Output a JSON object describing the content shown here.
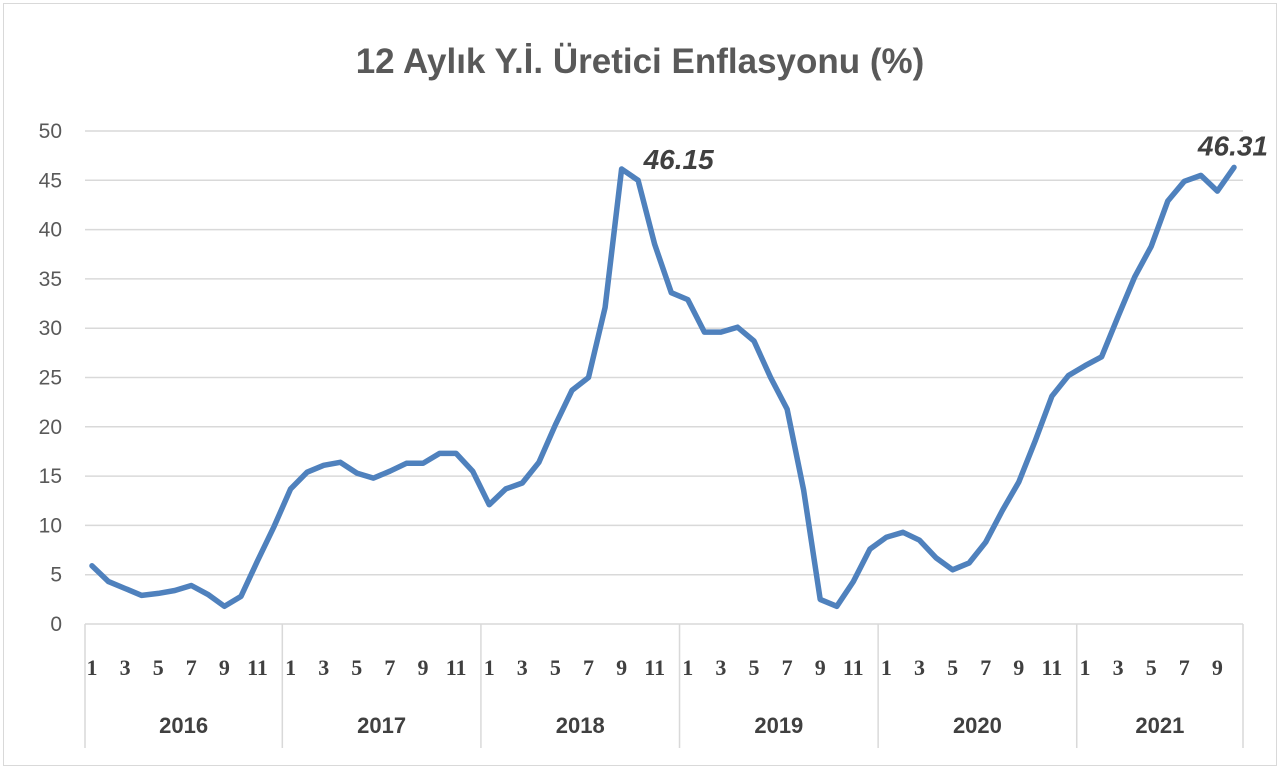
{
  "chart_data": {
    "type": "line",
    "title": "12 Aylık Y.İ. Üretici Enflasyonu (%)",
    "xlabel": "",
    "ylabel": "",
    "ylim": [
      0,
      50
    ],
    "yticks": [
      "0",
      "5",
      "10",
      "15",
      "20",
      "25",
      "30",
      "35",
      "40",
      "45",
      "50"
    ],
    "grid": true,
    "years": [
      "2016",
      "2017",
      "2018",
      "2019",
      "2020",
      "2021"
    ],
    "month_tick_labels": [
      "1",
      "3",
      "5",
      "7",
      "9",
      "11"
    ],
    "series": [
      {
        "color": "#4f81bd",
        "values": [
          5.9,
          4.3,
          3.6,
          2.9,
          3.1,
          3.4,
          3.9,
          3.0,
          1.8,
          2.8,
          6.4,
          9.9,
          13.7,
          15.4,
          16.1,
          16.4,
          15.3,
          14.8,
          15.5,
          16.3,
          16.3,
          17.3,
          17.3,
          15.5,
          12.1,
          13.7,
          14.3,
          16.4,
          20.2,
          23.7,
          25.0,
          32.1,
          46.15,
          45.0,
          38.5,
          33.6,
          32.9,
          29.6,
          29.6,
          30.1,
          28.7,
          25.0,
          21.8,
          13.6,
          2.5,
          1.8,
          4.3,
          7.6,
          8.8,
          9.3,
          8.5,
          6.7,
          5.5,
          6.2,
          8.3,
          11.5,
          14.4,
          18.6,
          23.1,
          25.2,
          26.2,
          27.1,
          31.2,
          35.2,
          38.3,
          42.9,
          44.9,
          45.5,
          43.9,
          46.31
        ]
      }
    ],
    "data_labels": [
      {
        "index": 32,
        "text": "46.15"
      },
      {
        "index": 69,
        "text": "46.31"
      }
    ]
  }
}
